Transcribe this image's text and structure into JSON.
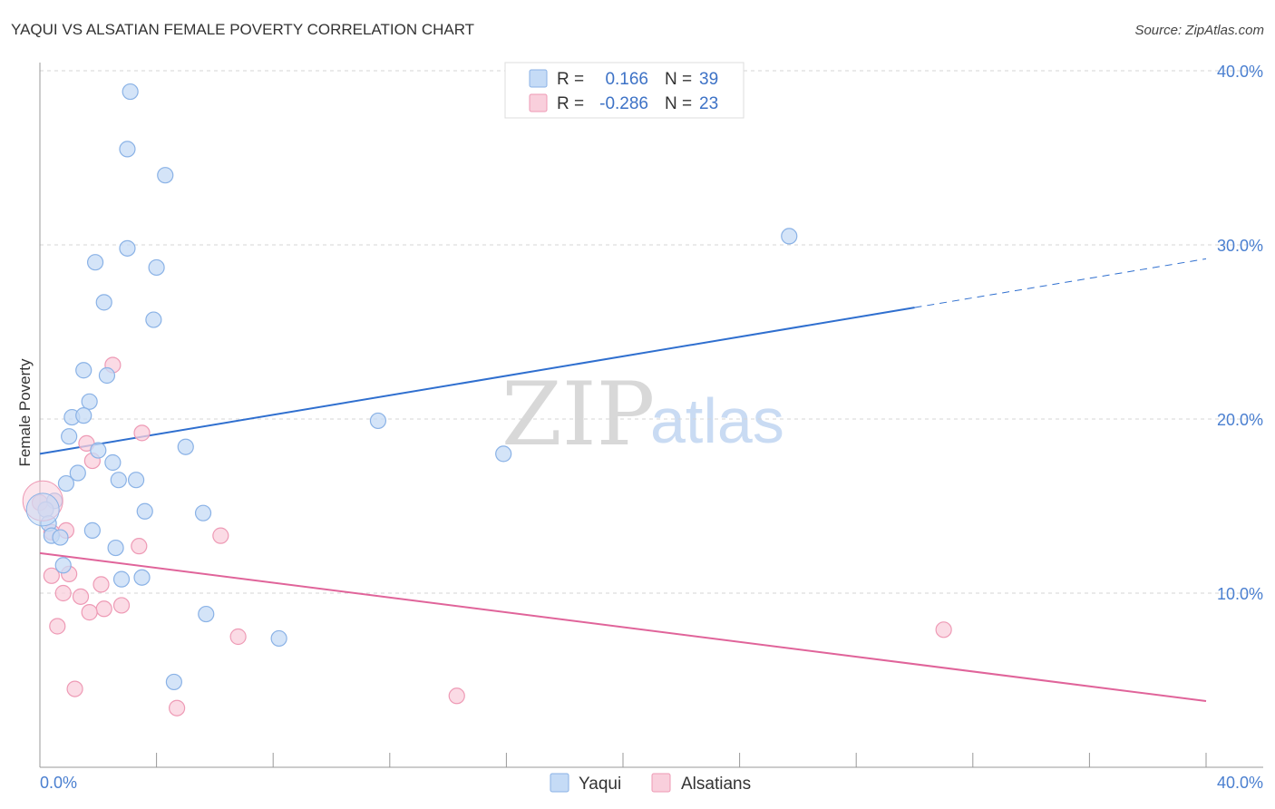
{
  "chart_data": {
    "type": "scatter",
    "title": "YAQUI VS ALSATIAN FEMALE POVERTY CORRELATION CHART",
    "source": "Source: ZipAtlas.com",
    "xlabel": "",
    "ylabel": "Female Poverty",
    "xlim": [
      0,
      40
    ],
    "ylim": [
      0,
      40
    ],
    "x_tick_labels": [
      "0.0%",
      "40.0%"
    ],
    "y_ticks": [
      {
        "value": 10,
        "label": "10.0%"
      },
      {
        "value": 20,
        "label": "20.0%"
      },
      {
        "value": 30,
        "label": "30.0%"
      },
      {
        "value": 40,
        "label": "40.0%"
      }
    ],
    "watermark": {
      "zip": "ZIP",
      "atlas": "atlas"
    },
    "legend_box": {
      "rows": [
        {
          "r_label": "R =",
          "r_value": "0.166",
          "n_label": "N =",
          "n_value": "39",
          "color": "#a9c8f2"
        },
        {
          "r_label": "R =",
          "r_value": "-0.286",
          "n_label": "N =",
          "n_value": "23",
          "color": "#f6b8cc"
        }
      ]
    },
    "series": [
      {
        "name": "Yaqui",
        "fill": "#c5dbf6",
        "stroke": "#8ab2e6",
        "line_color": "#2f6fcf",
        "trend": {
          "x0": 0,
          "y0": 18.0,
          "x1": 30.0,
          "y1": 26.4,
          "x_end": 40,
          "y_end": 29.2
        },
        "points": [
          [
            3.1,
            38.8
          ],
          [
            3.0,
            35.5
          ],
          [
            4.3,
            34.0
          ],
          [
            3.0,
            29.8
          ],
          [
            1.9,
            29.0
          ],
          [
            4.0,
            28.7
          ],
          [
            2.2,
            26.7
          ],
          [
            3.9,
            25.7
          ],
          [
            1.5,
            22.8
          ],
          [
            2.3,
            22.5
          ],
          [
            1.7,
            21.0
          ],
          [
            1.1,
            20.1
          ],
          [
            1.5,
            20.2
          ],
          [
            11.6,
            19.9
          ],
          [
            1.0,
            19.0
          ],
          [
            5.0,
            18.4
          ],
          [
            2.0,
            18.2
          ],
          [
            15.9,
            18.0
          ],
          [
            2.5,
            17.5
          ],
          [
            1.3,
            16.9
          ],
          [
            0.9,
            16.3
          ],
          [
            2.7,
            16.5
          ],
          [
            3.3,
            16.5
          ],
          [
            0.5,
            15.3
          ],
          [
            0.2,
            14.8
          ],
          [
            3.6,
            14.7
          ],
          [
            5.6,
            14.6
          ],
          [
            0.3,
            14.0
          ],
          [
            1.8,
            13.6
          ],
          [
            0.4,
            13.3
          ],
          [
            0.7,
            13.2
          ],
          [
            2.6,
            12.6
          ],
          [
            0.8,
            11.6
          ],
          [
            3.5,
            10.9
          ],
          [
            2.8,
            10.8
          ],
          [
            5.7,
            8.8
          ],
          [
            8.2,
            7.4
          ],
          [
            4.6,
            4.9
          ],
          [
            25.7,
            30.5
          ]
        ]
      },
      {
        "name": "Alsatians",
        "fill": "#f9cfdc",
        "stroke": "#ee9ab5",
        "line_color": "#e0649a",
        "trend": {
          "x0": 0,
          "y0": 12.3,
          "x1": 40,
          "y1": 3.8
        },
        "points": [
          [
            2.5,
            23.1
          ],
          [
            3.5,
            19.2
          ],
          [
            1.6,
            18.6
          ],
          [
            1.8,
            17.6
          ],
          [
            0.0,
            15.2
          ],
          [
            0.4,
            13.5
          ],
          [
            0.9,
            13.6
          ],
          [
            6.2,
            13.3
          ],
          [
            3.4,
            12.7
          ],
          [
            0.4,
            11.0
          ],
          [
            1.0,
            11.1
          ],
          [
            2.1,
            10.5
          ],
          [
            0.8,
            10.0
          ],
          [
            1.4,
            9.8
          ],
          [
            2.2,
            9.1
          ],
          [
            2.8,
            9.3
          ],
          [
            1.7,
            8.9
          ],
          [
            0.6,
            8.1
          ],
          [
            6.8,
            7.5
          ],
          [
            31.0,
            7.9
          ],
          [
            1.2,
            4.5
          ],
          [
            14.3,
            4.1
          ],
          [
            4.7,
            3.4
          ]
        ]
      }
    ],
    "legend": [
      "Yaqui",
      "Alsatians"
    ]
  }
}
